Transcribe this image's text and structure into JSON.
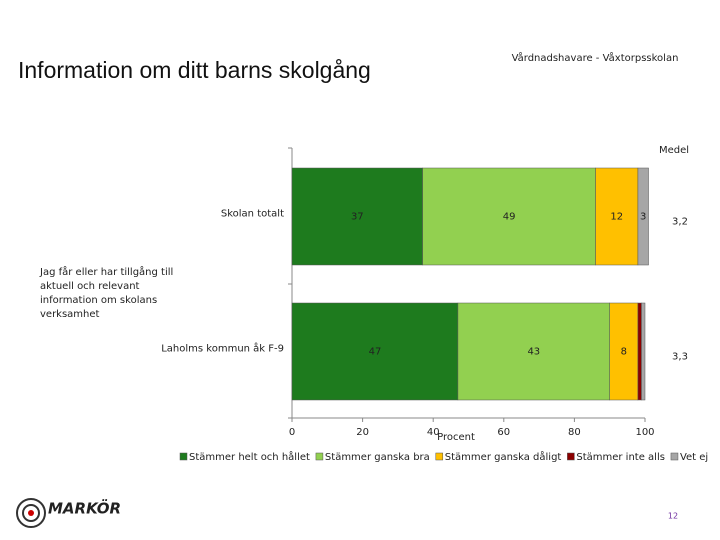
{
  "chart_data": {
    "type": "bar",
    "orientation": "horizontal",
    "stacked": true,
    "title": "Information om ditt barns skolgång",
    "subtitle": "Vårdnadshavare - Våxtorpsskolan",
    "group_label": "Jag får eller har tillgång till aktuell och relevant information om skolans verksamhet",
    "categories": [
      "Skolan totalt",
      "Laholms kommun åk F-9"
    ],
    "series": [
      {
        "name": "Stämmer helt och hållet",
        "color": "#1e7b1e",
        "values": [
          37,
          47
        ]
      },
      {
        "name": "Stämmer ganska bra",
        "color": "#92d050",
        "values": [
          49,
          43
        ]
      },
      {
        "name": "Stämmer ganska dåligt",
        "color": "#ffc000",
        "values": [
          12,
          8
        ]
      },
      {
        "name": "Stämmer inte alls",
        "color": "#8b0000",
        "values": [
          0,
          1
        ]
      },
      {
        "name": "Vet ej",
        "color": "#a6a6a6",
        "values": [
          3,
          1
        ]
      }
    ],
    "xlim": [
      0,
      100
    ],
    "xticks": [
      0,
      20,
      40,
      60,
      80,
      100
    ],
    "xlabel": "Procent",
    "mean_title": "Medel",
    "mean_values": [
      {
        "value": 3.2,
        "label": "3,2"
      },
      {
        "value": 3.3,
        "label": "3,3"
      }
    ],
    "logo": "MARKÖR",
    "page_number": "12"
  }
}
